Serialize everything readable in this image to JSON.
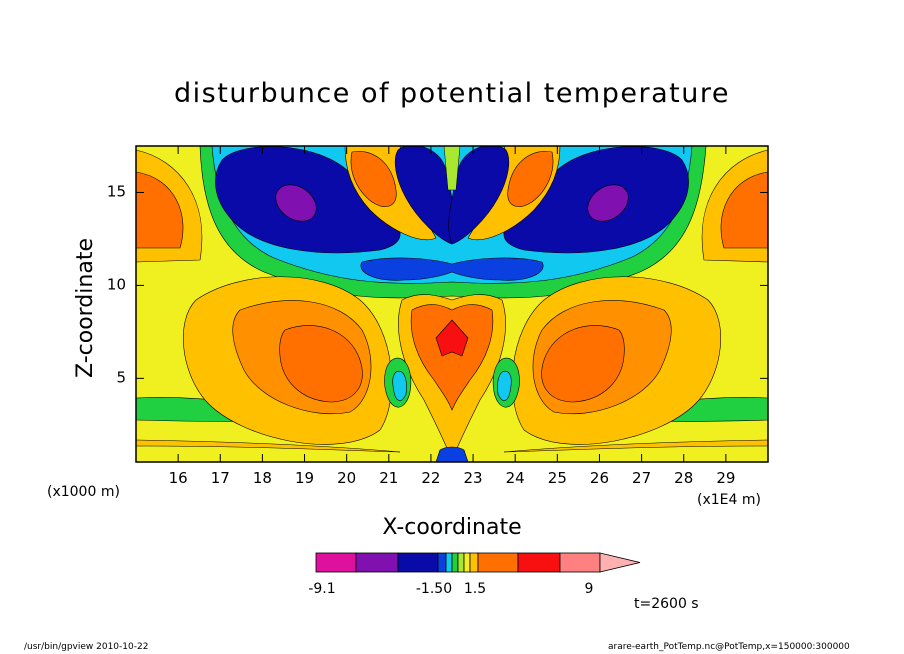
{
  "chart_data": {
    "type": "heatmap",
    "title": "disturbunce of potential temperature",
    "xlabel": "X-coordinate",
    "ylabel": "Z-coordinate",
    "x_unit": "(x1E4 m)",
    "y_unit": "(x1000 m)",
    "xlim": [
      15,
      30
    ],
    "ylim": [
      0.5,
      17.5
    ],
    "x_ticks": [
      16,
      17,
      18,
      19,
      20,
      21,
      22,
      23,
      24,
      25,
      26,
      27,
      28,
      29
    ],
    "y_ticks": [
      5,
      10,
      15
    ],
    "colorbar": {
      "labels": [
        "-9.1",
        "-1.50",
        "1.5",
        "9"
      ],
      "colors": [
        "#e0109e",
        "#8010b0",
        "#0a0aa8",
        "#0a40e0",
        "#10c8f0",
        "#20d040",
        "#a8e830",
        "#f0f020",
        "#ffc000",
        "#ff7000",
        "#f81010",
        "#ff8080",
        "#ffb0b0"
      ]
    },
    "time": "t=2600 s"
  },
  "footer": {
    "left": "/usr/bin/gpview   2010-10-22",
    "right": "arare-earth_PotTemp.nc@PotTemp,x=150000:300000"
  }
}
